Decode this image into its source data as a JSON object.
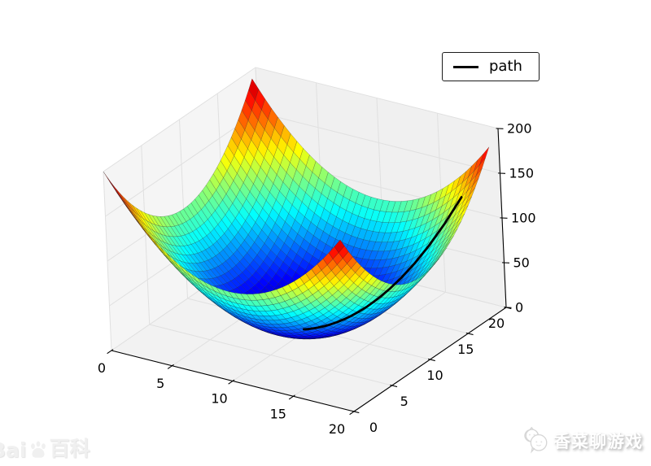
{
  "figure": {
    "background": "#ffffff",
    "style": {
      "pane_left_wall": "#f5f5f5",
      "pane_right_wall": "#f0f0f0",
      "pane_floor": "#f2f2f2",
      "grid_line": "#e0e0e0",
      "spine_color": "#000000",
      "tick_label_color": "#000000"
    }
  },
  "chart_data": {
    "type": "surface",
    "title": "",
    "xlabel": "",
    "ylabel": "",
    "zlabel": "",
    "x_range": [
      0,
      20
    ],
    "y_range": [
      0,
      20
    ],
    "z_range": [
      0,
      200
    ],
    "x_ticks": [
      0,
      5,
      10,
      15,
      20
    ],
    "y_ticks": [
      0,
      5,
      10,
      15,
      20
    ],
    "z_ticks": [
      0,
      50,
      100,
      150,
      200
    ],
    "grid": true,
    "view": {
      "elev": 30,
      "azim": -60
    },
    "surface": {
      "z_formula": "z = (x-10)^2 + (y-10)^2",
      "model": {
        "cx": 10,
        "cy": 10,
        "scale": 1
      },
      "grid_start": 0,
      "grid_stop": 19.5,
      "grid_step": 0.5,
      "colormap": "jet",
      "z_min": 0,
      "z_max": 200,
      "edge_color": "#1a1a1a"
    },
    "legend": {
      "position": "upper right",
      "entries": [
        {
          "label": "path",
          "line_color": "#000000"
        }
      ]
    },
    "path": {
      "color": "#000000",
      "line_width": 2.8,
      "points": [
        [
          18.0,
          18.0,
          128.0
        ],
        [
          17.1,
          17.1,
          100.82
        ],
        [
          16.25,
          16.25,
          78.13
        ],
        [
          15.5,
          15.5,
          60.5
        ],
        [
          14.8,
          14.8,
          46.08
        ],
        [
          14.15,
          14.15,
          34.45
        ],
        [
          13.55,
          13.55,
          25.21
        ],
        [
          13.0,
          13.0,
          18.0
        ],
        [
          12.55,
          12.55,
          13.01
        ],
        [
          12.15,
          12.15,
          9.25
        ],
        [
          11.8,
          11.8,
          6.48
        ],
        [
          11.5,
          11.5,
          4.5
        ],
        [
          11.25,
          11.25,
          3.13
        ],
        [
          11.0,
          11.0,
          2.0
        ],
        [
          10.8,
          10.8,
          1.28
        ],
        [
          10.62,
          10.62,
          0.77
        ],
        [
          10.47,
          10.47,
          0.44
        ],
        [
          10.33,
          10.33,
          0.22
        ],
        [
          10.2,
          10.2,
          0.08
        ],
        [
          10.08,
          10.08,
          0.01
        ],
        [
          9.95,
          9.95,
          0.01
        ],
        [
          9.85,
          9.85,
          0.05
        ],
        [
          9.75,
          9.75,
          0.13
        ]
      ]
    }
  },
  "watermarks": {
    "bottom_right": {
      "text": "香菜聊游戏",
      "logo": "chat-bubbles-logo",
      "text_color": "#ffffff",
      "shadow_color": "#b0b0b0"
    },
    "bottom_left": {
      "prefix": "Bai",
      "suffix": "百科",
      "logo": "baidu-paw-logo",
      "color": "#f0f0f0"
    }
  }
}
